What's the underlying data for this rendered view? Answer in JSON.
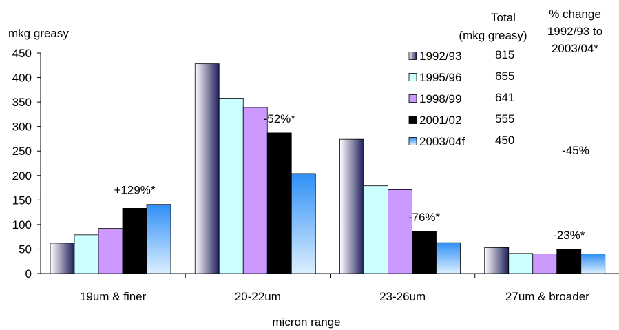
{
  "chart_data": {
    "type": "bar",
    "ylabel": "mkg greasy",
    "xlabel": "micron range",
    "ylim": [
      0,
      450
    ],
    "yticks": [
      0,
      50,
      100,
      150,
      200,
      250,
      300,
      350,
      400,
      450
    ],
    "grid": false,
    "legend_position": "top-right",
    "categories": [
      "19um & finer",
      "20-22um",
      "23-26um",
      "27um & broader"
    ],
    "series": [
      {
        "name": "1992/93",
        "values": [
          62,
          428,
          274,
          53
        ],
        "color": "#2c2c6e",
        "style": "gradient-navy",
        "total": "815"
      },
      {
        "name": "1995/96",
        "values": [
          79,
          358,
          179,
          41
        ],
        "color": "#ccffff",
        "style": "solid",
        "total": "655"
      },
      {
        "name": "1998/99",
        "values": [
          92,
          339,
          171,
          40
        ],
        "color": "#cc99ff",
        "style": "solid",
        "total": "641"
      },
      {
        "name": "2001/02",
        "values": [
          133,
          287,
          86,
          49
        ],
        "color": "#000000",
        "style": "solid",
        "total": "555"
      },
      {
        "name": "2003/04f",
        "values": [
          141,
          204,
          63,
          40
        ],
        "color": "#3399ff",
        "style": "gradient-blue",
        "total": "450"
      }
    ],
    "annotations": [
      "+129%*",
      "-52%*",
      "-76%*",
      "-23%*"
    ],
    "legend_header": {
      "total": [
        "Total",
        "(mkg greasy)"
      ],
      "change": [
        "% change",
        "1992/93 to",
        "2003/04*"
      ]
    },
    "overall_change": "-45%"
  }
}
